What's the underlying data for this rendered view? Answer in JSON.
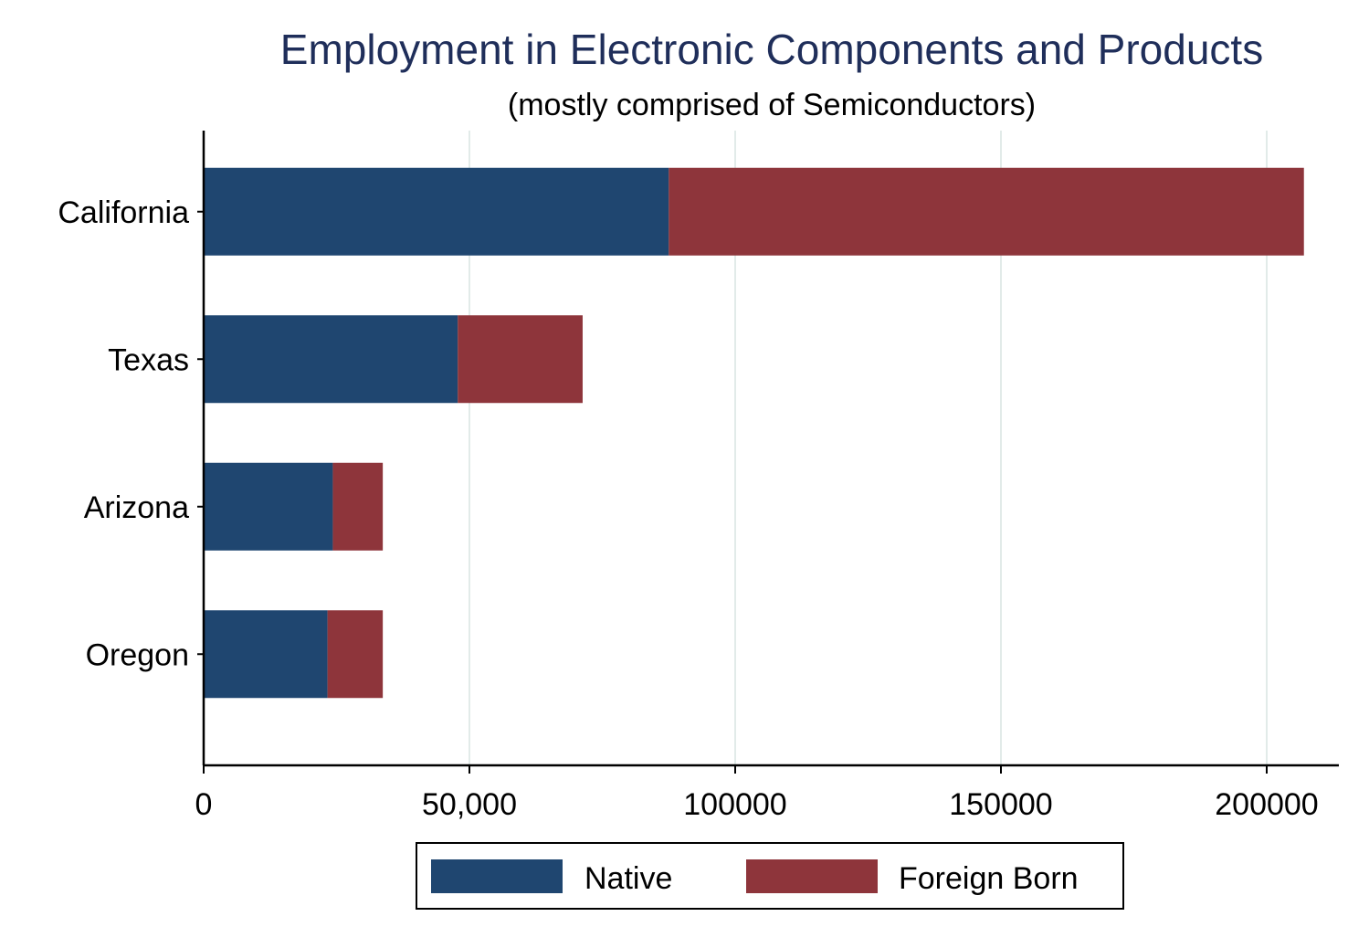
{
  "chart_data": {
    "type": "bar",
    "orientation": "horizontal",
    "stacked": true,
    "title": "Employment in Electronic Components and Products",
    "subtitle": "(mostly comprised of Semiconductors)",
    "xlabel": "",
    "ylabel": "",
    "categories": [
      "California",
      "Texas",
      "Arizona",
      "Oregon"
    ],
    "series": [
      {
        "name": "Native",
        "color": "#1f4670",
        "values": [
          87500,
          47800,
          24300,
          23300
        ]
      },
      {
        "name": "Foreign Born",
        "color": "#8e353b",
        "values": [
          119500,
          23500,
          9400,
          10400
        ]
      }
    ],
    "xlim": [
      0,
      213000
    ],
    "x_ticks": [
      0,
      50000,
      100000,
      150000,
      200000
    ],
    "x_tick_labels": [
      "0",
      "50,000",
      "100000",
      "150000",
      "200000"
    ],
    "grid": "vertical",
    "legend": {
      "position": "bottom",
      "entries": [
        "Native",
        "Foreign Born"
      ]
    }
  }
}
